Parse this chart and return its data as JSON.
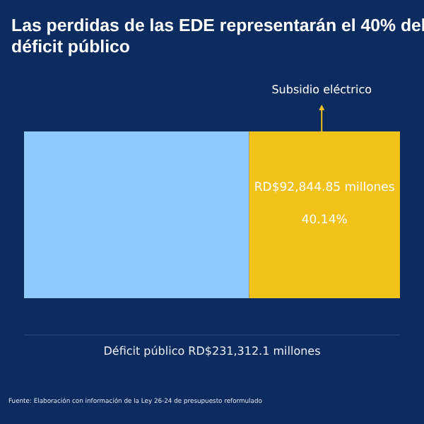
{
  "chart_data": {
    "type": "bar",
    "orientation": "horizontal",
    "stacked": true,
    "title": "Las perdidas de las EDE representarán el 40% del déficit público",
    "xlabel": "Déficit público RD$231,312.1 millones",
    "categories": [
      null
    ],
    "series": [
      {
        "color": "#8ecbfc",
        "values": [
          138467.25
        ]
      },
      {
        "name": "Subsidio eléctrico",
        "color": "#f2c21b",
        "values": [
          92844.85
        ],
        "value_labels": [
          "RD$92,844.85 millones"
        ]
      }
    ],
    "annotations": [
      "40.14%",
      "Fuente: Elaboración con información de la Ley 26-24 de presupuesto reformulado"
    ]
  }
}
